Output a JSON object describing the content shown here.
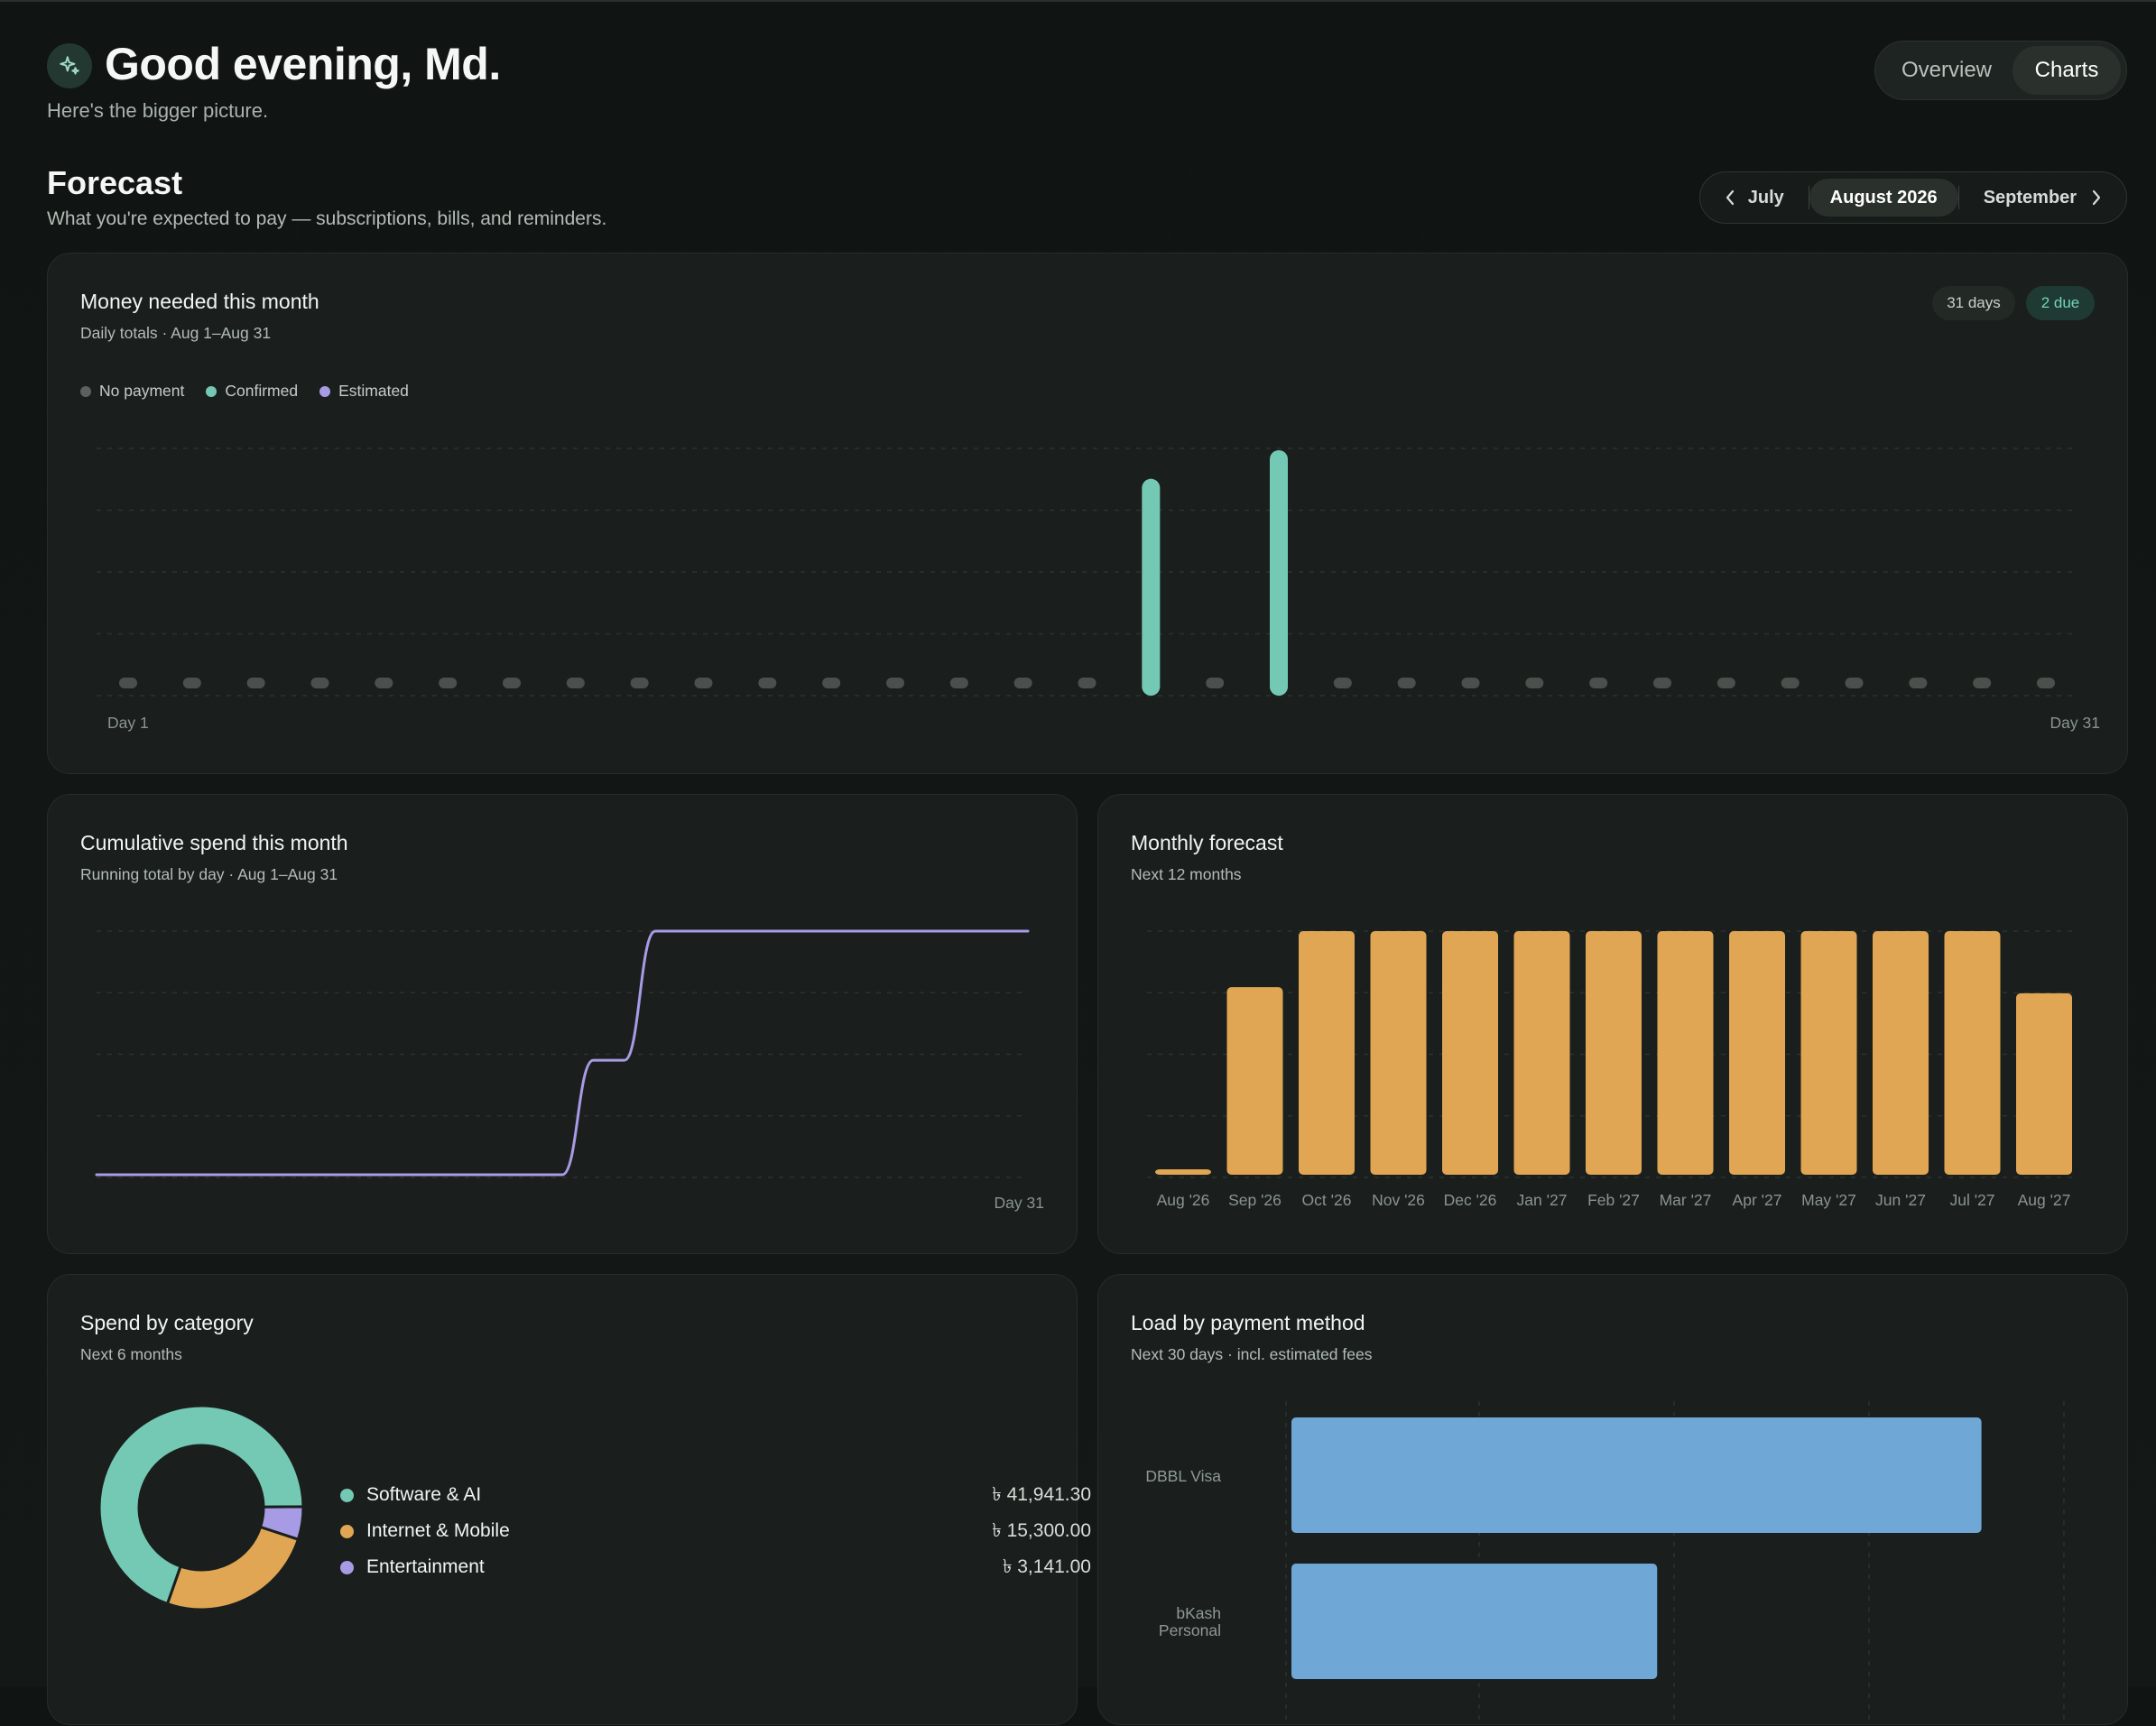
{
  "header": {
    "greeting": "Good evening, Md.",
    "subtitle": "Here's the bigger picture.",
    "icon": "sparkle-icon",
    "view_tabs": [
      {
        "label": "Overview",
        "active": false
      },
      {
        "label": "Charts",
        "active": true
      }
    ]
  },
  "forecast": {
    "title": "Forecast",
    "subtitle": "What you're expected to pay — subscriptions, bills, and reminders.",
    "month_nav": {
      "prev": "July",
      "current": "August 2026",
      "next": "September"
    }
  },
  "money_needed": {
    "title": "Money needed this month",
    "subtitle": "Daily totals · Aug 1–Aug 31",
    "badge_days": "31 days",
    "badge_due": "2 due",
    "legend": [
      {
        "label": "No payment",
        "color": "#5b625e"
      },
      {
        "label": "Confirmed",
        "color": "#74c9b4"
      },
      {
        "label": "Estimated",
        "color": "#a79be6"
      }
    ],
    "x_start": "Day 1",
    "x_end": "Day 31",
    "chart_data": {
      "type": "bar",
      "days": 31,
      "values": [
        0,
        0,
        0,
        0,
        0,
        0,
        0,
        0,
        0,
        0,
        0,
        0,
        0,
        0,
        0,
        0,
        0.88,
        0,
        1.0,
        0,
        0,
        0,
        0,
        0,
        0,
        0,
        0,
        0,
        0,
        0,
        0
      ],
      "status": [
        "none",
        "none",
        "none",
        "none",
        "none",
        "none",
        "none",
        "none",
        "none",
        "none",
        "none",
        "none",
        "none",
        "none",
        "none",
        "none",
        "confirmed",
        "none",
        "confirmed",
        "none",
        "none",
        "none",
        "none",
        "none",
        "none",
        "none",
        "none",
        "none",
        "none",
        "none",
        "none"
      ],
      "ylim": [
        0,
        1.0
      ]
    }
  },
  "cumulative": {
    "title": "Cumulative spend this month",
    "subtitle": "Running total by day · Aug 1–Aug 31",
    "x_end": "Day 31",
    "chart_data": {
      "type": "line",
      "x": [
        1,
        2,
        3,
        4,
        5,
        6,
        7,
        8,
        9,
        10,
        11,
        12,
        13,
        14,
        15,
        16,
        17,
        18,
        19,
        20,
        21,
        22,
        23,
        24,
        25,
        26,
        27,
        28,
        29,
        30,
        31
      ],
      "y": [
        0,
        0,
        0,
        0,
        0,
        0,
        0,
        0,
        0,
        0,
        0,
        0,
        0,
        0,
        0,
        0,
        0.47,
        0.47,
        1.0,
        1.0,
        1.0,
        1.0,
        1.0,
        1.0,
        1.0,
        1.0,
        1.0,
        1.0,
        1.0,
        1.0,
        1.0
      ],
      "ylim": [
        0,
        1.0
      ],
      "color": "#a79be6"
    }
  },
  "monthly": {
    "title": "Monthly forecast",
    "subtitle": "Next 12 months",
    "chart_data": {
      "type": "bar",
      "categories": [
        "Aug '26",
        "Sep '26",
        "Oct '26",
        "Nov '26",
        "Dec '26",
        "Jan '27",
        "Feb '27",
        "Mar '27",
        "Apr '27",
        "May '27",
        "Jun '27",
        "Jul '27",
        "Aug '27"
      ],
      "values": [
        0.02,
        0.77,
        1.0,
        1.0,
        1.0,
        1.0,
        1.0,
        1.0,
        1.0,
        1.0,
        1.0,
        1.0,
        0.745
      ],
      "ylim": [
        0,
        1.0
      ],
      "color": "#e0a654"
    }
  },
  "category": {
    "title": "Spend by category",
    "subtitle": "Next 6 months",
    "chart_data": {
      "type": "pie",
      "slices": [
        {
          "label": "Software & AI",
          "amount": "৳ 41,941.30",
          "value": 41941.3,
          "color": "#74c9b4"
        },
        {
          "label": "Internet & Mobile",
          "amount": "৳ 15,300.00",
          "value": 15300.0,
          "color": "#e0a654"
        },
        {
          "label": "Entertainment",
          "amount": "৳ 3,141.00",
          "value": 3141.0,
          "color": "#a79be6"
        }
      ]
    }
  },
  "method": {
    "title": "Load by payment method",
    "subtitle": "Next 30 days · incl. estimated fees",
    "chart_data": {
      "type": "bar",
      "orientation": "horizontal",
      "categories": [
        "DBBL Visa",
        "bKash Personal"
      ],
      "category_lines": [
        [
          "DBBL Visa"
        ],
        [
          "bKash",
          "Personal"
        ]
      ],
      "values": [
        1.0,
        0.53
      ],
      "xlim": [
        0,
        1.13
      ],
      "color": "#6fa8d6"
    }
  }
}
